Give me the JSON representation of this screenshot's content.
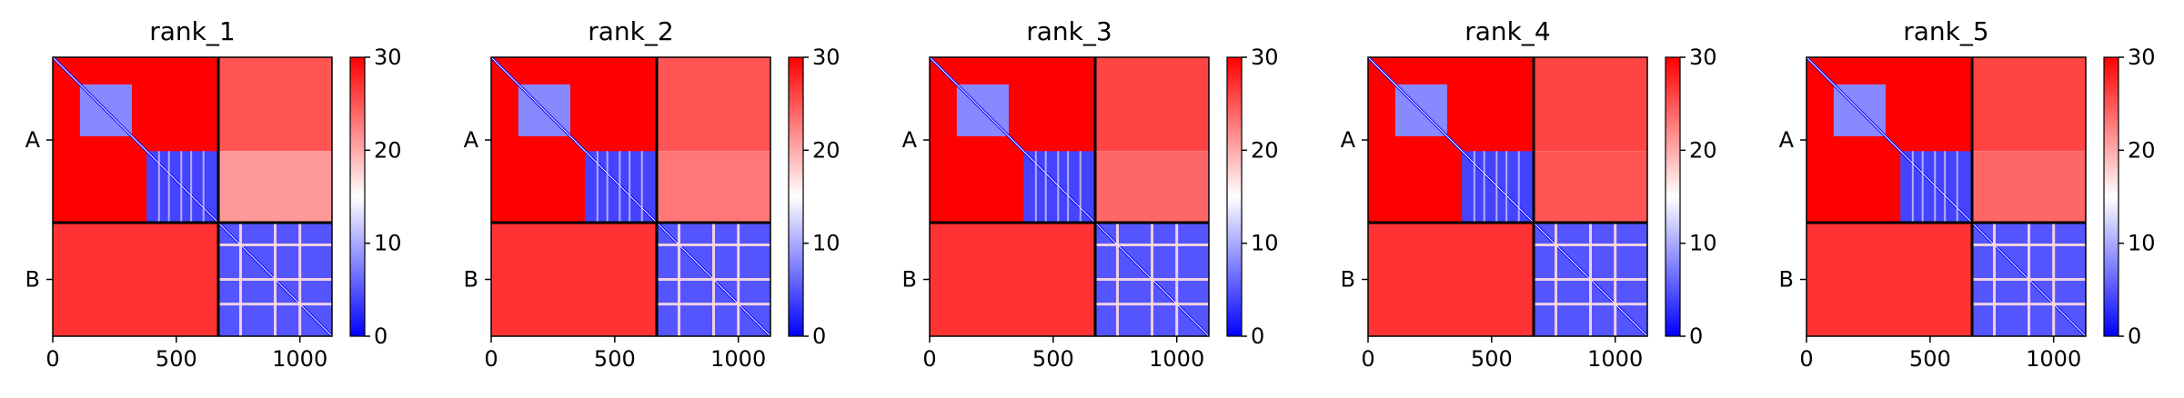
{
  "chart_data": [
    {
      "type": "heatmap",
      "title": "rank_1",
      "xticks": [
        "0",
        "500",
        "1000"
      ],
      "xtick_values": [
        0,
        500,
        1000
      ],
      "xlim": [
        0,
        1130
      ],
      "ylim": [
        0,
        1130
      ],
      "chain_labels": [
        "A",
        "B"
      ],
      "chain_boundary": 670,
      "colorbar": {
        "ticks": [
          "0",
          "10",
          "20",
          "30"
        ],
        "tick_values": [
          0,
          10,
          20,
          30
        ],
        "range": [
          0,
          30
        ],
        "colormap": "bwr"
      },
      "regions": [
        {
          "x": [
            0,
            670
          ],
          "y": [
            0,
            670
          ],
          "value": 30
        },
        {
          "x": [
            110,
            320
          ],
          "y": [
            110,
            320
          ],
          "value": 8
        },
        {
          "x": [
            380,
            670
          ],
          "y": [
            380,
            670
          ],
          "value": 4
        },
        {
          "x": [
            380,
            670
          ],
          "y": [
            0,
            380
          ],
          "value": 30
        },
        {
          "x": [
            670,
            1130
          ],
          "y": [
            0,
            380
          ],
          "value": 25
        },
        {
          "x": [
            670,
            1130
          ],
          "y": [
            380,
            670
          ],
          "value": 21
        },
        {
          "x": [
            0,
            670
          ],
          "y": [
            670,
            1130
          ],
          "value": 27
        },
        {
          "x": [
            670,
            1130
          ],
          "y": [
            670,
            1130
          ],
          "value": 5
        }
      ]
    },
    {
      "type": "heatmap",
      "title": "rank_2",
      "xticks": [
        "0",
        "500",
        "1000"
      ],
      "xtick_values": [
        0,
        500,
        1000
      ],
      "xlim": [
        0,
        1130
      ],
      "ylim": [
        0,
        1130
      ],
      "chain_labels": [
        "A",
        "B"
      ],
      "chain_boundary": 670,
      "colorbar": {
        "ticks": [
          "0",
          "10",
          "20",
          "30"
        ],
        "tick_values": [
          0,
          10,
          20,
          30
        ],
        "range": [
          0,
          30
        ],
        "colormap": "bwr"
      },
      "regions": [
        {
          "x": [
            0,
            670
          ],
          "y": [
            0,
            670
          ],
          "value": 30
        },
        {
          "x": [
            110,
            320
          ],
          "y": [
            110,
            320
          ],
          "value": 8
        },
        {
          "x": [
            380,
            670
          ],
          "y": [
            380,
            670
          ],
          "value": 4
        },
        {
          "x": [
            380,
            670
          ],
          "y": [
            0,
            380
          ],
          "value": 30
        },
        {
          "x": [
            670,
            1130
          ],
          "y": [
            0,
            380
          ],
          "value": 25
        },
        {
          "x": [
            670,
            1130
          ],
          "y": [
            380,
            670
          ],
          "value": 23
        },
        {
          "x": [
            0,
            670
          ],
          "y": [
            670,
            1130
          ],
          "value": 27
        },
        {
          "x": [
            670,
            1130
          ],
          "y": [
            670,
            1130
          ],
          "value": 5
        }
      ]
    },
    {
      "type": "heatmap",
      "title": "rank_3",
      "xticks": [
        "0",
        "500",
        "1000"
      ],
      "xtick_values": [
        0,
        500,
        1000
      ],
      "xlim": [
        0,
        1130
      ],
      "ylim": [
        0,
        1130
      ],
      "chain_labels": [
        "A",
        "B"
      ],
      "chain_boundary": 670,
      "colorbar": {
        "ticks": [
          "0",
          "10",
          "20",
          "30"
        ],
        "tick_values": [
          0,
          10,
          20,
          30
        ],
        "range": [
          0,
          30
        ],
        "colormap": "bwr"
      },
      "regions": [
        {
          "x": [
            0,
            670
          ],
          "y": [
            0,
            670
          ],
          "value": 30
        },
        {
          "x": [
            110,
            320
          ],
          "y": [
            110,
            320
          ],
          "value": 8
        },
        {
          "x": [
            380,
            670
          ],
          "y": [
            380,
            670
          ],
          "value": 4
        },
        {
          "x": [
            380,
            670
          ],
          "y": [
            0,
            380
          ],
          "value": 30
        },
        {
          "x": [
            670,
            1130
          ],
          "y": [
            0,
            380
          ],
          "value": 26
        },
        {
          "x": [
            670,
            1130
          ],
          "y": [
            380,
            670
          ],
          "value": 24
        },
        {
          "x": [
            0,
            670
          ],
          "y": [
            670,
            1130
          ],
          "value": 27
        },
        {
          "x": [
            670,
            1130
          ],
          "y": [
            670,
            1130
          ],
          "value": 5
        }
      ]
    },
    {
      "type": "heatmap",
      "title": "rank_4",
      "xticks": [
        "0",
        "500",
        "1000"
      ],
      "xtick_values": [
        0,
        500,
        1000
      ],
      "xlim": [
        0,
        1130
      ],
      "ylim": [
        0,
        1130
      ],
      "chain_labels": [
        "A",
        "B"
      ],
      "chain_boundary": 670,
      "colorbar": {
        "ticks": [
          "0",
          "10",
          "20",
          "30"
        ],
        "tick_values": [
          0,
          10,
          20,
          30
        ],
        "range": [
          0,
          30
        ],
        "colormap": "bwr"
      },
      "regions": [
        {
          "x": [
            0,
            670
          ],
          "y": [
            0,
            670
          ],
          "value": 30
        },
        {
          "x": [
            110,
            320
          ],
          "y": [
            110,
            320
          ],
          "value": 8
        },
        {
          "x": [
            380,
            670
          ],
          "y": [
            380,
            670
          ],
          "value": 4
        },
        {
          "x": [
            380,
            670
          ],
          "y": [
            0,
            380
          ],
          "value": 30
        },
        {
          "x": [
            670,
            1130
          ],
          "y": [
            0,
            380
          ],
          "value": 26
        },
        {
          "x": [
            670,
            1130
          ],
          "y": [
            380,
            670
          ],
          "value": 25
        },
        {
          "x": [
            0,
            670
          ],
          "y": [
            670,
            1130
          ],
          "value": 27
        },
        {
          "x": [
            670,
            1130
          ],
          "y": [
            670,
            1130
          ],
          "value": 5
        }
      ]
    },
    {
      "type": "heatmap",
      "title": "rank_5",
      "xticks": [
        "0",
        "500",
        "1000"
      ],
      "xtick_values": [
        0,
        500,
        1000
      ],
      "xlim": [
        0,
        1130
      ],
      "ylim": [
        0,
        1130
      ],
      "chain_labels": [
        "A",
        "B"
      ],
      "chain_boundary": 670,
      "colorbar": {
        "ticks": [
          "0",
          "10",
          "20",
          "30"
        ],
        "tick_values": [
          0,
          10,
          20,
          30
        ],
        "range": [
          0,
          30
        ],
        "colormap": "bwr"
      },
      "regions": [
        {
          "x": [
            0,
            670
          ],
          "y": [
            0,
            670
          ],
          "value": 30
        },
        {
          "x": [
            110,
            320
          ],
          "y": [
            110,
            320
          ],
          "value": 8
        },
        {
          "x": [
            380,
            670
          ],
          "y": [
            380,
            670
          ],
          "value": 4
        },
        {
          "x": [
            380,
            670
          ],
          "y": [
            0,
            380
          ],
          "value": 30
        },
        {
          "x": [
            670,
            1130
          ],
          "y": [
            0,
            380
          ],
          "value": 26
        },
        {
          "x": [
            670,
            1130
          ],
          "y": [
            380,
            670
          ],
          "value": 24
        },
        {
          "x": [
            0,
            670
          ],
          "y": [
            670,
            1130
          ],
          "value": 27
        },
        {
          "x": [
            670,
            1130
          ],
          "y": [
            670,
            1130
          ],
          "value": 5
        }
      ]
    }
  ]
}
